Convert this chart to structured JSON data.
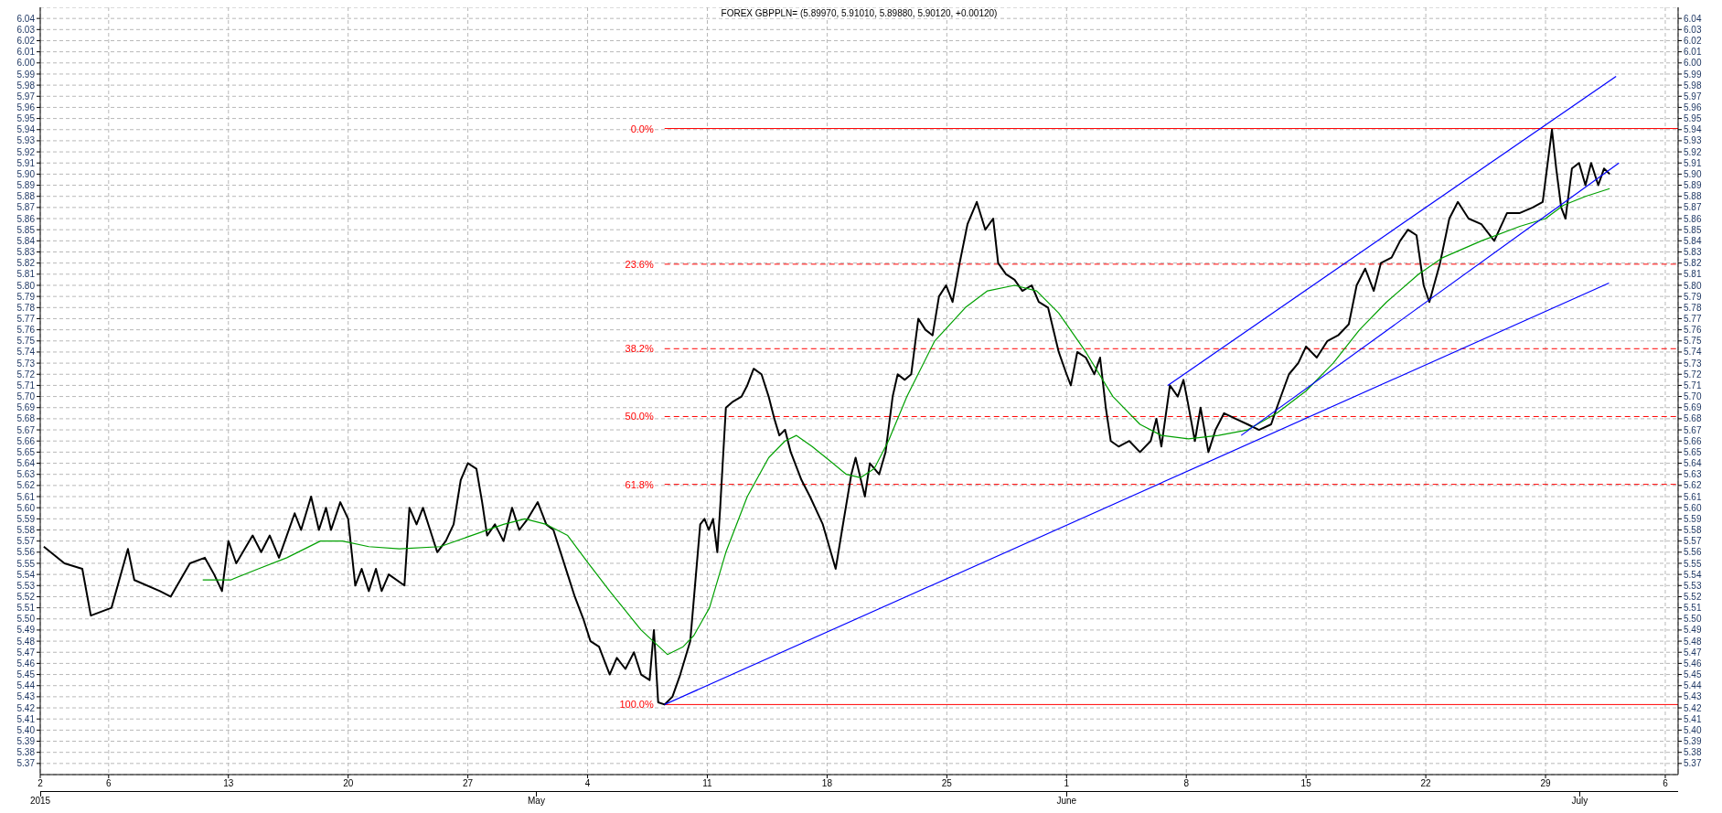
{
  "chart_data": {
    "type": "line",
    "title": "FOREX GBPPLN= (5.89970, 5.91010, 5.89880, 5.90120, +0.00120)",
    "xlim": [
      "2015-04-02",
      "2015-07-06T18:00"
    ],
    "xticks": [
      {
        "value": "2015-04-02",
        "label": "2"
      },
      {
        "value": "2015-04-06",
        "label": "6"
      },
      {
        "value": "2015-04-13",
        "label": "13"
      },
      {
        "value": "2015-04-20",
        "label": "20"
      },
      {
        "value": "2015-04-27",
        "label": "27"
      },
      {
        "value": "2015-05-04",
        "label": "4"
      },
      {
        "value": "2015-05-11",
        "label": "11"
      },
      {
        "value": "2015-05-18",
        "label": "18"
      },
      {
        "value": "2015-05-25",
        "label": "25"
      },
      {
        "value": "2015-06-01",
        "label": "1"
      },
      {
        "value": "2015-06-08",
        "label": "8"
      },
      {
        "value": "2015-06-15",
        "label": "15"
      },
      {
        "value": "2015-06-22",
        "label": "22"
      },
      {
        "value": "2015-06-29",
        "label": "29"
      },
      {
        "value": "2015-07-06",
        "label": "6"
      }
    ],
    "x2lim": [
      "2015-04-02",
      "2015-07-06T18:00"
    ],
    "x2ticks": [
      {
        "value": "2015-04-02",
        "label": "2015"
      },
      {
        "value": "2015-05-01",
        "label": "May"
      },
      {
        "value": "2015-06-01",
        "label": "June"
      },
      {
        "value": "2015-07-01",
        "label": "July"
      }
    ],
    "ylim": [
      5.36,
      6.05
    ],
    "yticks": [
      5.37,
      5.38,
      5.39,
      {
        "value": 5.4,
        "label": "5.40"
      },
      5.41,
      5.42,
      5.43,
      5.44,
      5.45,
      5.46,
      5.47,
      5.48,
      5.49,
      {
        "value": 5.5,
        "label": "5.50"
      },
      5.51,
      5.52,
      5.53,
      5.54,
      5.55,
      5.56,
      5.57,
      5.58,
      5.59,
      {
        "value": 5.6,
        "label": "5.60"
      },
      5.61,
      5.62,
      5.63,
      5.64,
      5.65,
      5.66,
      5.67,
      5.68,
      5.69,
      {
        "value": 5.7,
        "label": "5.70"
      },
      5.71,
      5.72,
      5.73,
      5.74,
      5.75,
      5.76,
      5.77,
      5.78,
      5.79,
      {
        "value": 5.8,
        "label": "5.80"
      },
      5.81,
      5.82,
      5.83,
      5.84,
      5.85,
      5.86,
      5.87,
      5.88,
      5.89,
      {
        "value": 5.9,
        "label": "5.90"
      },
      5.91,
      5.92,
      5.93,
      5.94,
      5.95,
      5.96,
      5.97,
      5.98,
      5.99,
      {
        "value": 6,
        "label": "6.00"
      },
      6.01,
      6.02,
      6.03,
      6.04
    ],
    "y2lim": [
      5.36,
      6.05
    ],
    "y2ticks": [
      5.37,
      5.38,
      5.39,
      {
        "value": 5.4,
        "label": "5.40"
      },
      5.41,
      5.42,
      5.43,
      5.44,
      5.45,
      5.46,
      5.47,
      5.48,
      5.49,
      {
        "value": 5.5,
        "label": "5.50"
      },
      5.51,
      5.52,
      5.53,
      5.54,
      5.55,
      5.56,
      5.57,
      5.58,
      5.59,
      {
        "value": 5.6,
        "label": "5.60"
      },
      5.61,
      5.62,
      5.63,
      5.64,
      5.65,
      5.66,
      5.67,
      5.68,
      5.69,
      {
        "value": 5.7,
        "label": "5.70"
      },
      5.71,
      5.72,
      5.73,
      5.74,
      5.75,
      5.76,
      5.77,
      5.78,
      5.79,
      {
        "value": 5.8,
        "label": "5.80"
      },
      5.81,
      5.82,
      5.83,
      5.84,
      5.85,
      5.86,
      5.87,
      5.88,
      5.89,
      {
        "value": 5.9,
        "label": "5.90"
      },
      5.91,
      5.92,
      5.93,
      5.94,
      5.95,
      5.96,
      5.97,
      5.98,
      5.99,
      {
        "value": 6,
        "label": "6.00"
      },
      6.01,
      6.02,
      6.03,
      6.04
    ],
    "grid": true,
    "series": [
      {
        "color": "#000000",
        "x": [
          "2015-04-02T05:00",
          "2015-04-03T10:00",
          "2015-04-04T11:00",
          "2015-04-04T23:00",
          "2015-04-06T04:00",
          "2015-04-07T03:00",
          "2015-04-07T12:00",
          "2015-04-09T00:00",
          "2015-04-09T15:00",
          "2015-04-10T18:00",
          "2015-04-11T15:00",
          "2015-04-12T04:00",
          "2015-04-12T15:00",
          "2015-04-13T00:00",
          "2015-04-13T11:00",
          "2015-04-14T10:00",
          "2015-04-14T22:00",
          "2015-04-15T10:00",
          "2015-04-15T23:00",
          "2015-04-16T21:00",
          "2015-04-17T06:00",
          "2015-04-17T20:00",
          "2015-04-18T07:00",
          "2015-04-18T17:00",
          "2015-04-19T00:00",
          "2015-04-19T13:00",
          "2015-04-20T00:00",
          "2015-04-20T10:00",
          "2015-04-20T19:00",
          "2015-04-21T05:00",
          "2015-04-21T15:00",
          "2015-04-21T23:00",
          "2015-04-22T09:00",
          "2015-04-23T07:00",
          "2015-04-23T14:00",
          "2015-04-24T00:00",
          "2015-04-24T09:00",
          "2015-04-24T19:00",
          "2015-04-25T05:00",
          "2015-04-25T17:00",
          "2015-04-26T04:00",
          "2015-04-26T14:00",
          "2015-04-27T00:00",
          "2015-04-27T12:00",
          "2015-04-27T20:00",
          "2015-04-28T03:00",
          "2015-04-28T14:00",
          "2015-04-29T02:00",
          "2015-04-29T14:00",
          "2015-04-30T00:00",
          "2015-04-30T12:00",
          "2015-05-01T02:00",
          "2015-05-01T14:00",
          "2015-05-02T00:00",
          "2015-05-02T20:00",
          "2015-05-03T06:00",
          "2015-05-03T18:00",
          "2015-05-04T04:00",
          "2015-05-04T16:00",
          "2015-05-05T07:00",
          "2015-05-05T17:00",
          "2015-05-06T05:00",
          "2015-05-06T17:00",
          "2015-05-07T03:00",
          "2015-05-07T15:00",
          "2015-05-07T21:00",
          "2015-05-08T03:00",
          "2015-05-08T12:00",
          "2015-05-08T23:00",
          "2015-05-09T10:00",
          "2015-05-10T00:00",
          "2015-05-10T08:00",
          "2015-05-10T14:00",
          "2015-05-10T20:00",
          "2015-05-11T02:00",
          "2015-05-11T08:00",
          "2015-05-11T14:00",
          "2015-05-11T18:00",
          "2015-05-12T02:00",
          "2015-05-12T11:00",
          "2015-05-13T00:00",
          "2015-05-13T08:00",
          "2015-05-13T17:00",
          "2015-05-14T04:00",
          "2015-05-14T14:00",
          "2015-05-14T22:00",
          "2015-05-15T05:00",
          "2015-05-15T13:00",
          "2015-05-15T21:00",
          "2015-05-16T12:00",
          "2015-05-17T00:00",
          "2015-05-17T18:00",
          "2015-05-18T12:00",
          "2015-05-18T21:00",
          "2015-05-19T10:00",
          "2015-05-19T16:00",
          "2015-05-20T05:00",
          "2015-05-20T12:00",
          "2015-05-21T01:00",
          "2015-05-21T10:00",
          "2015-05-21T20:00",
          "2015-05-22T03:00",
          "2015-05-22T13:00",
          "2015-05-22T22:00",
          "2015-05-23T08:00",
          "2015-05-23T18:00",
          "2015-05-24T04:00",
          "2015-05-24T13:00",
          "2015-05-24T23:00",
          "2015-05-25T08:00",
          "2015-05-25T18:00",
          "2015-05-26T05:00",
          "2015-05-26T18:00",
          "2015-05-27T06:00",
          "2015-05-27T17:00",
          "2015-05-28T00:00",
          "2015-05-28T11:00",
          "2015-05-28T23:00",
          "2015-05-29T10:00",
          "2015-05-29T23:00",
          "2015-05-30T09:00",
          "2015-05-30T22:00",
          "2015-05-31T13:00",
          "2015-06-01T00:00",
          "2015-06-01T06:00",
          "2015-06-01T15:00",
          "2015-06-02T03:00",
          "2015-06-02T15:00",
          "2015-06-02T23:00",
          "2015-06-03T07:00",
          "2015-06-03T14:00",
          "2015-06-04T01:00",
          "2015-06-04T16:00",
          "2015-06-05T07:00",
          "2015-06-05T22:00",
          "2015-06-06T06:00",
          "2015-06-06T13:00",
          "2015-06-07T01:00",
          "2015-06-07T12:00",
          "2015-06-07T20:00",
          "2015-06-08T02:00",
          "2015-06-08T12:00",
          "2015-06-08T20:00",
          "2015-06-09T07:00",
          "2015-06-09T17:00",
          "2015-06-10T05:00",
          "2015-06-10T21:00",
          "2015-06-11T14:00",
          "2015-06-12T06:00",
          "2015-06-12T23:00",
          "2015-06-13T07:00",
          "2015-06-14T00:00",
          "2015-06-14T13:00",
          "2015-06-15T00:00",
          "2015-06-15T15:00",
          "2015-06-16T06:00",
          "2015-06-16T21:00",
          "2015-06-17T12:00",
          "2015-06-17T23:00",
          "2015-06-18T11:00",
          "2015-06-18T23:00",
          "2015-06-19T09:00",
          "2015-06-20T00:00",
          "2015-06-20T12:00",
          "2015-06-20T23:00",
          "2015-06-21T11:00",
          "2015-06-21T21:00",
          "2015-06-22T05:00",
          "2015-06-22T20:00",
          "2015-06-23T09:00",
          "2015-06-23T21:00",
          "2015-06-24T12:00",
          "2015-06-25T06:00",
          "2015-06-26T00:00",
          "2015-06-26T18:00",
          "2015-06-27T12:00",
          "2015-06-28T06:00",
          "2015-06-28T20:00",
          "2015-06-29T05:00",
          "2015-06-29T09:00",
          "2015-06-29T15:00",
          "2015-06-29T22:00",
          "2015-06-30T04:00",
          "2015-06-30T13:00",
          "2015-06-30T23:00",
          "2015-07-01T08:00",
          "2015-07-01T16:00",
          "2015-07-02T02:00",
          "2015-07-02T10:00",
          "2015-07-02T18:00"
        ],
        "values": [
          5.565,
          5.55,
          5.545,
          5.503,
          5.51,
          5.563,
          5.535,
          5.525,
          5.52,
          5.55,
          5.555,
          5.54,
          5.525,
          5.57,
          5.55,
          5.575,
          5.56,
          5.575,
          5.555,
          5.595,
          5.58,
          5.61,
          5.58,
          5.6,
          5.58,
          5.605,
          5.59,
          5.53,
          5.545,
          5.525,
          5.545,
          5.525,
          5.54,
          5.53,
          5.6,
          5.585,
          5.6,
          5.58,
          5.56,
          5.57,
          5.585,
          5.625,
          5.64,
          5.635,
          5.605,
          5.575,
          5.585,
          5.57,
          5.6,
          5.58,
          5.59,
          5.605,
          5.585,
          5.58,
          5.54,
          5.52,
          5.5,
          5.48,
          5.475,
          5.45,
          5.465,
          5.455,
          5.47,
          5.45,
          5.445,
          5.49,
          5.425,
          5.423,
          5.43,
          5.45,
          5.48,
          5.54,
          5.585,
          5.59,
          5.58,
          5.59,
          5.56,
          5.6,
          5.69,
          5.695,
          5.7,
          5.71,
          5.725,
          5.72,
          5.7,
          5.68,
          5.665,
          5.67,
          5.65,
          5.625,
          5.61,
          5.585,
          5.545,
          5.58,
          5.63,
          5.645,
          5.61,
          5.64,
          5.63,
          5.65,
          5.7,
          5.72,
          5.715,
          5.72,
          5.77,
          5.76,
          5.755,
          5.79,
          5.8,
          5.785,
          5.82,
          5.855,
          5.875,
          5.85,
          5.86,
          5.82,
          5.81,
          5.805,
          5.795,
          5.8,
          5.785,
          5.78,
          5.74,
          5.72,
          5.71,
          5.74,
          5.735,
          5.72,
          5.735,
          5.69,
          5.66,
          5.655,
          5.66,
          5.65,
          5.66,
          5.68,
          5.655,
          5.71,
          5.7,
          5.715,
          5.695,
          5.66,
          5.69,
          5.65,
          5.67,
          5.685,
          5.68,
          5.675,
          5.67,
          5.675,
          5.69,
          5.72,
          5.73,
          5.745,
          5.735,
          5.75,
          5.755,
          5.765,
          5.8,
          5.815,
          5.795,
          5.82,
          5.825,
          5.84,
          5.85,
          5.845,
          5.8,
          5.785,
          5.82,
          5.86,
          5.875,
          5.86,
          5.855,
          5.84,
          5.865,
          5.865,
          5.87,
          5.875,
          5.92,
          5.94,
          5.905,
          5.87,
          5.86,
          5.905,
          5.91,
          5.89,
          5.91,
          5.89,
          5.905,
          5.9
        ]
      },
      {
        "color": "#00a000",
        "x": [
          "2015-04-11T12:00",
          "2015-04-13T03:00",
          "2015-04-14T18:00",
          "2015-04-16T10:00",
          "2015-04-18T09:00",
          "2015-04-19T16:00",
          "2015-04-21T05:00",
          "2015-04-23T00:00",
          "2015-04-25T09:00",
          "2015-04-27T05:00",
          "2015-04-29T02:00",
          "2015-04-30T08:00",
          "2015-05-01T14:00",
          "2015-05-02T20:00",
          "2015-05-04T01:00",
          "2015-05-05T07:00",
          "2015-05-07T03:00",
          "2015-05-08T16:00",
          "2015-05-09T14:00",
          "2015-05-10T05:00",
          "2015-05-11T03:00",
          "2015-05-12T02:00",
          "2015-05-13T08:00",
          "2015-05-14T14:00",
          "2015-05-15T13:00",
          "2015-05-16T05:00",
          "2015-05-17T03:00",
          "2015-05-18T08:00",
          "2015-05-19T03:00",
          "2015-05-19T23:00",
          "2015-05-20T18:00",
          "2015-05-21T14:00",
          "2015-05-22T16:00",
          "2015-05-24T07:00",
          "2015-05-26T02:00",
          "2015-05-27T09:00",
          "2015-05-28T23:00",
          "2015-05-30T06:00",
          "2015-05-31T13:00",
          "2015-06-02T03:00",
          "2015-06-03T17:00",
          "2015-06-05T07:00",
          "2015-06-06T13:00",
          "2015-06-08T03:00",
          "2015-06-09T21:00",
          "2015-06-11T14:00",
          "2015-06-13T07:00",
          "2015-06-15T00:00",
          "2015-06-16T14:00",
          "2015-06-18T03:00",
          "2015-06-19T17:00",
          "2015-06-21T14:00",
          "2015-06-23T00:00",
          "2015-06-25T06:00",
          "2015-06-27T12:00",
          "2015-06-29T00:00",
          "2015-06-30T01:00",
          "2015-07-01T08:00",
          "2015-07-02T18:00"
        ],
        "values": [
          5.535,
          5.535,
          5.545,
          5.555,
          5.57,
          5.57,
          5.565,
          5.563,
          5.565,
          5.575,
          5.585,
          5.59,
          5.585,
          5.575,
          5.55,
          5.525,
          5.49,
          5.468,
          5.475,
          5.485,
          5.51,
          5.56,
          5.61,
          5.645,
          5.66,
          5.665,
          5.655,
          5.64,
          5.63,
          5.627,
          5.635,
          5.66,
          5.7,
          5.75,
          5.78,
          5.795,
          5.8,
          5.795,
          5.775,
          5.74,
          5.7,
          5.675,
          5.665,
          5.662,
          5.665,
          5.67,
          5.685,
          5.705,
          5.73,
          5.76,
          5.785,
          5.81,
          5.825,
          5.84,
          5.853,
          5.86,
          5.872,
          5.88,
          5.887
        ]
      },
      {
        "color": "#0000ff",
        "x": [
          "2015-05-08T12:00",
          "2015-07-02T17:00"
        ],
        "values": [
          5.423,
          5.802
        ]
      },
      {
        "color": "#0000ff",
        "x": [
          "2015-06-06T22:00",
          "2015-07-03T03:00"
        ],
        "values": [
          5.71,
          5.988
        ]
      },
      {
        "color": "#0000ff",
        "x": [
          "2015-06-11T05:00",
          "2015-07-03T07:00"
        ],
        "values": [
          5.665,
          5.91
        ]
      }
    ],
    "ref_lines": [
      {
        "axis": "y",
        "value": 5.941,
        "color": "#ff0000",
        "line_style": "solid"
      },
      {
        "axis": "y",
        "value": 5.819,
        "color": "#ff0000",
        "line_style": "dashed"
      },
      {
        "axis": "y",
        "value": 5.743,
        "color": "#ff0000",
        "line_style": "dashed"
      },
      {
        "axis": "y",
        "value": 5.682,
        "color": "#ff0000",
        "line_style": "dashed"
      },
      {
        "axis": "y",
        "value": 5.621,
        "color": "#ff0000",
        "line_style": "dashed"
      },
      {
        "axis": "y",
        "value": 5.423,
        "color": "#ff0000",
        "line_style": "solid"
      }
    ],
    "annotations": [
      {
        "text": "0.0%",
        "x": "2015-05-08T12:00",
        "y": 5.941
      },
      {
        "text": "23.6%",
        "x": "2015-05-08T12:00",
        "y": 5.819
      },
      {
        "text": "38.2%",
        "x": "2015-05-08T12:00",
        "y": 5.743
      },
      {
        "text": "50.0%",
        "x": "2015-05-08T12:00",
        "y": 5.682
      },
      {
        "text": "61.8%",
        "x": "2015-05-08T12:00",
        "y": 5.621
      },
      {
        "text": "100.0%",
        "x": "2015-05-08T12:00",
        "y": 5.423
      }
    ]
  }
}
